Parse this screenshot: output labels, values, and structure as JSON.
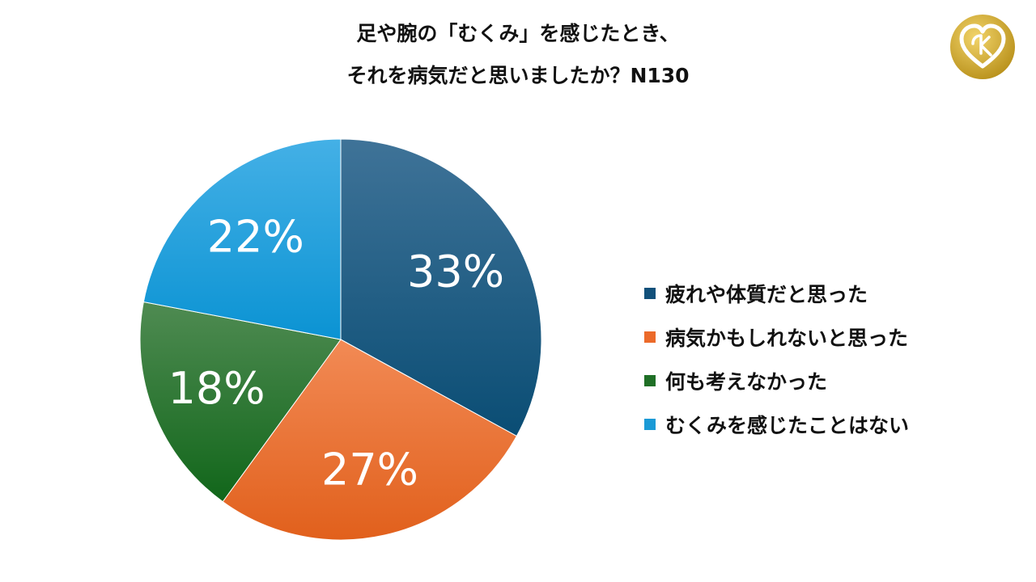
{
  "header": {
    "title_line1": "足や腕の「むくみ」を感じたとき、",
    "title_line2": "それを病気だと思いましたか？N130"
  },
  "chart_data": {
    "type": "pie",
    "title": "足や腕の「むくみ」を感じたとき、それを病気だと思いましたか？N130",
    "slices": [
      {
        "label": "疲れや体質だと思った",
        "value": 33,
        "display": "33%",
        "color": "#11507a"
      },
      {
        "label": "病気かもしれないと思った",
        "value": 27,
        "display": "27%",
        "color": "#ec6a2a"
      },
      {
        "label": "何も考えなかった",
        "value": 18,
        "display": "18%",
        "color": "#1f6f26"
      },
      {
        "label": "むくみを感じたことはない",
        "value": 22,
        "display": "22%",
        "color": "#1a9ad6"
      }
    ],
    "legend_position": "right"
  },
  "legend": {
    "items": [
      {
        "label": "疲れや体質だと思った",
        "color": "#11507a"
      },
      {
        "label": "病気かもしれないと思った",
        "color": "#ec6a2a"
      },
      {
        "label": "何も考えなかった",
        "color": "#1f6f26"
      },
      {
        "label": "むくみを感じたことはない",
        "color": "#1a9ad6"
      }
    ]
  },
  "logo": {
    "icon": "heart-logo-icon",
    "color": "#c9a227"
  }
}
